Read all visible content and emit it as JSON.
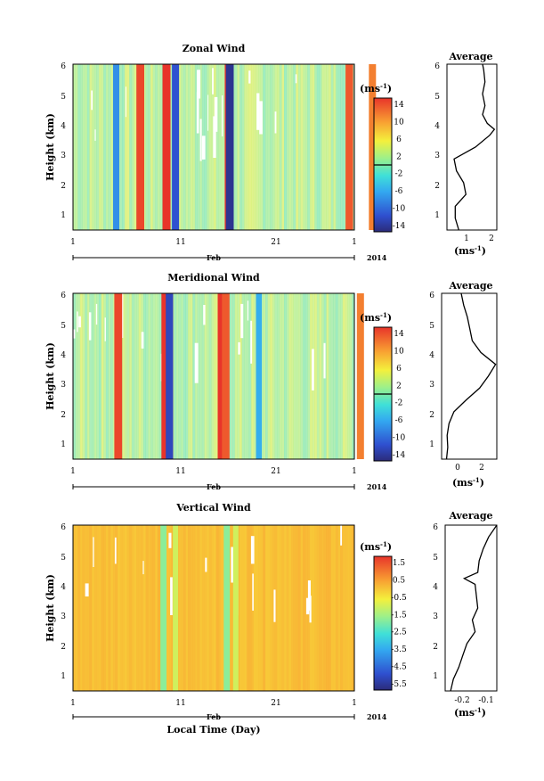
{
  "chart_data": [
    {
      "type": "heatmap",
      "title": "Zonal Wind",
      "ylabel": "Height (km)",
      "y_ticks": [
        1,
        2,
        3,
        4,
        5,
        6
      ],
      "ylim": [
        0.4,
        6
      ],
      "x_ticks": [
        "1",
        "11",
        "21",
        "1"
      ],
      "x_month": "Feb",
      "x_year": "2014",
      "colorbar": {
        "unit": "(ms",
        "unit_exp": "-1",
        "labels": [
          "14",
          "10",
          "6",
          "2",
          "-2",
          "-6",
          "-10",
          "-14"
        ],
        "min": -16,
        "max": 16
      },
      "stripes": [
        {
          "day": 4.3,
          "value": -8
        },
        {
          "day": 6.7,
          "value": 15
        },
        {
          "day": 9.3,
          "value": 16
        },
        {
          "day": 10.2,
          "value": -12
        },
        {
          "day": 15.5,
          "value": 16
        },
        {
          "day": 15.6,
          "value": -15
        },
        {
          "day": 27.5,
          "value": 14
        },
        {
          "day": 29.8,
          "value": 12
        }
      ],
      "profile": {
        "title": "Average",
        "xlabel": "(ms",
        "xlabel_exp": "-1",
        "x_ticks": [
          "1",
          "2"
        ],
        "xlim": [
          0.2,
          2.3
        ],
        "heights": [
          0.4,
          0.8,
          1.2,
          1.6,
          2.0,
          2.4,
          2.8,
          3.2,
          3.6,
          3.8,
          4.0,
          4.3,
          4.6,
          5.0,
          5.4,
          5.8,
          6.0
        ],
        "values": [
          0.7,
          0.55,
          0.55,
          1.0,
          0.9,
          0.6,
          0.5,
          1.4,
          2.0,
          2.2,
          1.9,
          1.7,
          1.8,
          1.7,
          1.8,
          1.75,
          1.7
        ]
      }
    },
    {
      "type": "heatmap",
      "title": "Meridional Wind",
      "ylabel": "Height (km)",
      "y_ticks": [
        1,
        2,
        3,
        4,
        5,
        6
      ],
      "ylim": [
        0.4,
        6
      ],
      "x_ticks": [
        "1",
        "11",
        "21",
        "1"
      ],
      "x_month": "Feb",
      "x_year": "2014",
      "colorbar": {
        "unit": "(ms",
        "unit_exp": "-1",
        "labels": [
          "14",
          "10",
          "6",
          "2",
          "-2",
          "-6",
          "-10",
          "-14"
        ],
        "min": -16,
        "max": 16
      },
      "stripes": [
        {
          "day": 4.5,
          "value": 15
        },
        {
          "day": 9.2,
          "value": 16
        },
        {
          "day": 9.6,
          "value": -13
        },
        {
          "day": 14.8,
          "value": 16
        },
        {
          "day": 15.2,
          "value": 14
        },
        {
          "day": 18.5,
          "value": -6
        },
        {
          "day": 28.6,
          "value": 12
        }
      ],
      "profile": {
        "title": "Average",
        "xlabel": "(ms",
        "xlabel_exp": "-1",
        "x_ticks": [
          "0",
          "2"
        ],
        "xlim": [
          -1.2,
          3.3
        ],
        "heights": [
          0.4,
          0.8,
          1.2,
          1.6,
          2.0,
          2.4,
          2.8,
          3.2,
          3.6,
          4.0,
          4.4,
          4.8,
          5.2,
          5.6,
          6.0
        ],
        "values": [
          -0.8,
          -0.7,
          -0.75,
          -0.6,
          -0.2,
          0.8,
          1.9,
          2.6,
          3.2,
          2.0,
          1.3,
          1.1,
          0.9,
          0.6,
          0.4
        ]
      }
    },
    {
      "type": "heatmap",
      "title": "Vertical Wind",
      "ylabel": "Height (km)",
      "xlabel": "Local Time (Day)",
      "y_ticks": [
        1,
        2,
        3,
        4,
        5,
        6
      ],
      "ylim": [
        0.4,
        6
      ],
      "x_ticks": [
        "1",
        "11",
        "21",
        "1"
      ],
      "x_month": "Feb",
      "x_year": "2014",
      "colorbar": {
        "unit": "(ms",
        "unit_exp": "-1",
        "labels": [
          "1.5",
          "0.5",
          "-0.5",
          "-1.5",
          "-2.5",
          "-3.5",
          "-4.5",
          "-5.5"
        ],
        "min": -6,
        "max": 2
      },
      "stripes": [
        {
          "day": 9.0,
          "value": -1.8
        },
        {
          "day": 10.2,
          "value": -1.0
        },
        {
          "day": 15.3,
          "value": -1.8
        },
        {
          "day": 16.2,
          "value": -1.0
        }
      ],
      "profile": {
        "title": "Average",
        "xlabel": "(ms",
        "xlabel_exp": "-1",
        "x_ticks": [
          "-0.2",
          "-0.1"
        ],
        "xlim": [
          -0.24,
          -0.05
        ],
        "heights": [
          0.4,
          0.8,
          1.2,
          1.6,
          2.0,
          2.4,
          2.8,
          3.2,
          3.6,
          4.0,
          4.2,
          4.4,
          4.8,
          5.2,
          5.6,
          6.0
        ],
        "values": [
          -0.22,
          -0.21,
          -0.19,
          -0.175,
          -0.16,
          -0.13,
          -0.14,
          -0.12,
          -0.125,
          -0.13,
          -0.17,
          -0.12,
          -0.115,
          -0.1,
          -0.08,
          -0.05
        ]
      }
    }
  ]
}
